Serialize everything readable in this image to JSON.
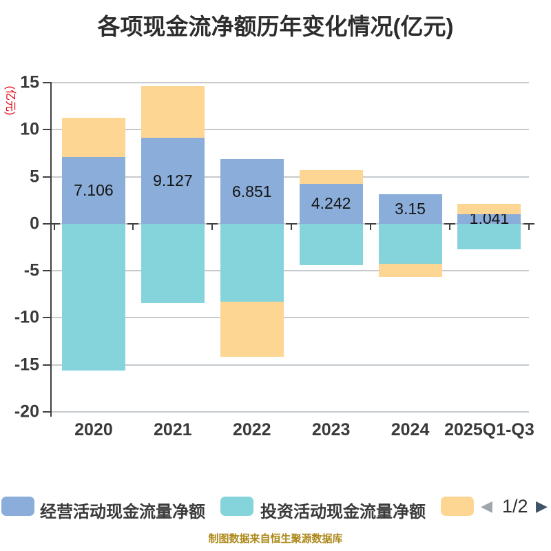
{
  "title": "各项现金流净额历年变化情况(亿元)",
  "y_axis_name": "(亿元)",
  "footer": "制图数据来自恒生聚源数据库",
  "pager": {
    "label": "1/2",
    "prev": "◀",
    "next": "▶"
  },
  "legend": [
    {
      "label": "经营活动现金流量净额",
      "color": "#8badd9"
    },
    {
      "label": "投资活动现金流量净额",
      "color": "#85d4db"
    },
    {
      "label": "",
      "color": "#fdd693"
    }
  ],
  "colors": {
    "grid": "#c6cacd",
    "axis": "#3f3f3f",
    "title_text": "#2d2d2d",
    "axis_label_text": "#3a3a3a",
    "y_name_red": "#e60012",
    "footer_gold": "#ad881a",
    "pager_prev_gray": "#a0a6ab",
    "pager_next_navy": "#3d5468"
  },
  "chart_data": {
    "type": "bar",
    "stacked": true,
    "grid": true,
    "legend_position": "bottom",
    "categories": [
      "2020",
      "2021",
      "2022",
      "2023",
      "2024",
      "2025Q1-Q3"
    ],
    "ylim": [
      -20,
      15
    ],
    "yticks": [
      15,
      10,
      5,
      0,
      -5,
      -10,
      -15,
      -20
    ],
    "series": [
      {
        "name": "经营活动现金流量净额",
        "color": "#8badd9",
        "values": [
          7.106,
          9.127,
          6.851,
          4.242,
          3.15,
          1.041
        ],
        "data_labels": [
          "7.106",
          "9.127",
          "6.851",
          "4.242",
          "3.15",
          "1.041"
        ]
      },
      {
        "name": "投资活动现金流量净额",
        "color": "#85d4db",
        "values": [
          -15.6,
          -8.41,
          -8.27,
          -4.39,
          -4.25,
          -2.71
        ],
        "values_estimated": true
      },
      {
        "name": "",
        "color": "#fdd693",
        "values": [
          4.15,
          5.5,
          -5.85,
          1.46,
          -1.38,
          1.08
        ],
        "values_estimated": true
      }
    ]
  }
}
